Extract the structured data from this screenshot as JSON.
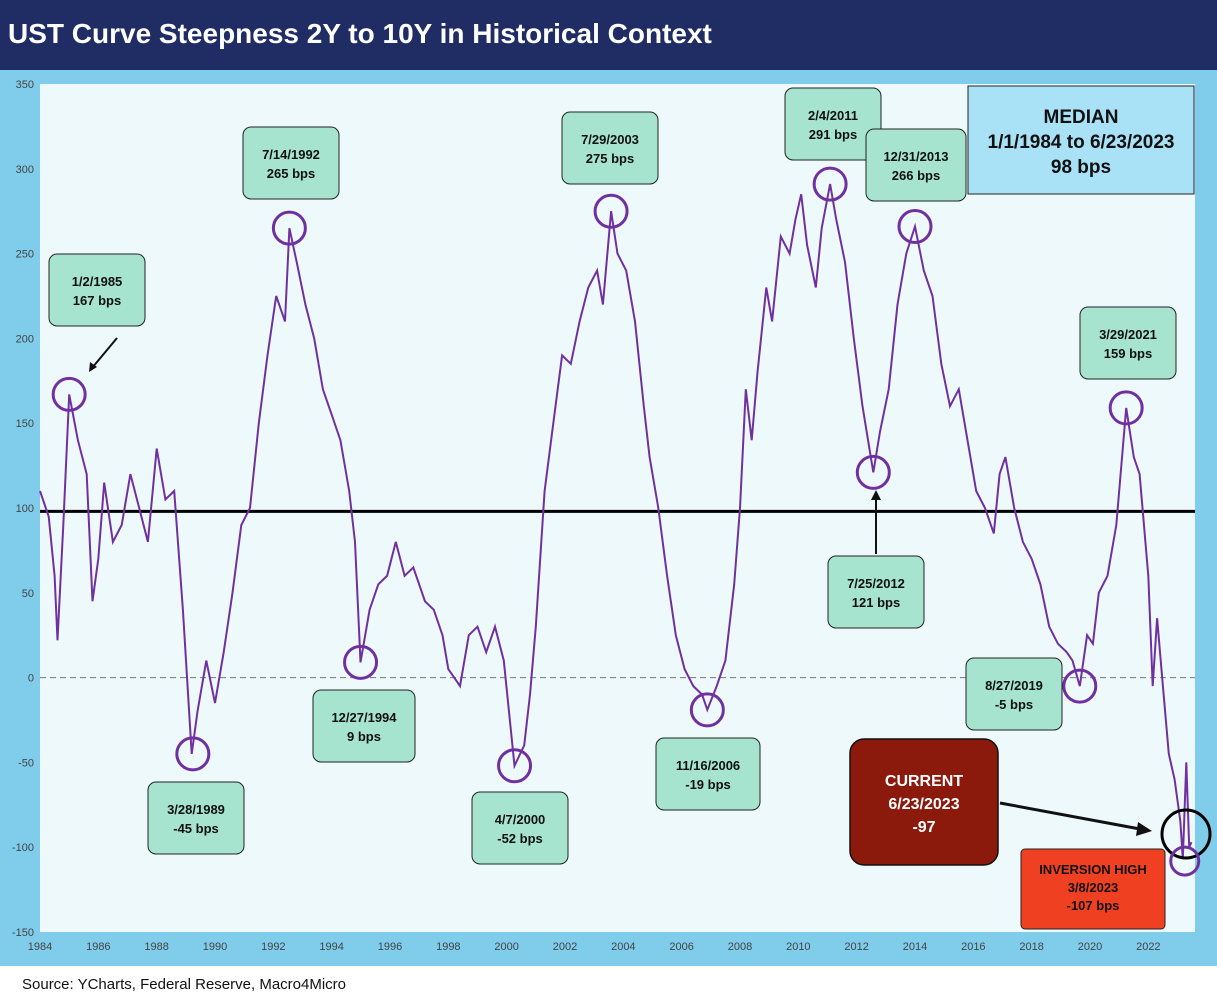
{
  "header": {
    "title": "UST Curve Steepness 2Y to 10Y in Historical Context"
  },
  "footer": {
    "source": "Source: YCharts, Federal Reserve, Macro4Micro"
  },
  "colors": {
    "title_bg": "#1f2d64",
    "plot_bg": "#eef9fc",
    "line": "#7030a0",
    "callout": "#a6e4d0",
    "median_box": "#a9e1f7",
    "current_box": "#8b1a0c",
    "inversion_box": "#f04022"
  },
  "chart_data": {
    "type": "line",
    "title": "UST Curve Steepness 2Y to 10Y in Historical Context",
    "xlabel": "",
    "ylabel": "",
    "xlim": [
      1984,
      2023.6
    ],
    "ylim": [
      -150,
      350
    ],
    "x_ticks": [
      "1984",
      "1986",
      "1988",
      "1990",
      "1992",
      "1994",
      "1996",
      "1998",
      "2000",
      "2002",
      "2004",
      "2006",
      "2008",
      "2010",
      "2012",
      "2014",
      "2016",
      "2018",
      "2020",
      "2022"
    ],
    "y_ticks": [
      "350",
      "300",
      "250",
      "200",
      "150",
      "100",
      "50",
      "0",
      "-50",
      "-100",
      "-150"
    ],
    "median_line": 98,
    "zero_line": 0,
    "grid": false,
    "series": [
      {
        "points": [
          [
            1984.0,
            110
          ],
          [
            1984.3,
            95
          ],
          [
            1984.5,
            60
          ],
          [
            1984.6,
            22
          ],
          [
            1984.8,
            90
          ],
          [
            1985.0,
            167
          ],
          [
            1985.3,
            140
          ],
          [
            1985.6,
            120
          ],
          [
            1985.8,
            45
          ],
          [
            1986.0,
            70
          ],
          [
            1986.2,
            115
          ],
          [
            1986.5,
            80
          ],
          [
            1986.8,
            90
          ],
          [
            1987.1,
            120
          ],
          [
            1987.4,
            100
          ],
          [
            1987.7,
            80
          ],
          [
            1988.0,
            135
          ],
          [
            1988.3,
            105
          ],
          [
            1988.6,
            110
          ],
          [
            1988.9,
            40
          ],
          [
            1989.2,
            -45
          ],
          [
            1989.4,
            -20
          ],
          [
            1989.7,
            10
          ],
          [
            1990.0,
            -15
          ],
          [
            1990.3,
            15
          ],
          [
            1990.6,
            50
          ],
          [
            1990.9,
            90
          ],
          [
            1991.2,
            100
          ],
          [
            1991.5,
            150
          ],
          [
            1991.8,
            190
          ],
          [
            1992.1,
            225
          ],
          [
            1992.4,
            210
          ],
          [
            1992.55,
            265
          ],
          [
            1992.8,
            245
          ],
          [
            1993.1,
            220
          ],
          [
            1993.4,
            200
          ],
          [
            1993.7,
            170
          ],
          [
            1994.0,
            155
          ],
          [
            1994.3,
            140
          ],
          [
            1994.6,
            110
          ],
          [
            1994.8,
            80
          ],
          [
            1994.99,
            9
          ],
          [
            1995.3,
            40
          ],
          [
            1995.6,
            55
          ],
          [
            1995.9,
            60
          ],
          [
            1996.2,
            80
          ],
          [
            1996.5,
            60
          ],
          [
            1996.8,
            65
          ],
          [
            1997.2,
            45
          ],
          [
            1997.5,
            40
          ],
          [
            1997.8,
            25
          ],
          [
            1998.0,
            5
          ],
          [
            1998.2,
            0
          ],
          [
            1998.4,
            -5
          ],
          [
            1998.7,
            25
          ],
          [
            1999.0,
            30
          ],
          [
            1999.3,
            15
          ],
          [
            1999.6,
            30
          ],
          [
            1999.9,
            10
          ],
          [
            2000.27,
            -52
          ],
          [
            2000.6,
            -40
          ],
          [
            2000.8,
            -10
          ],
          [
            2001.0,
            30
          ],
          [
            2001.3,
            110
          ],
          [
            2001.6,
            150
          ],
          [
            2001.9,
            190
          ],
          [
            2002.2,
            185
          ],
          [
            2002.5,
            210
          ],
          [
            2002.8,
            230
          ],
          [
            2003.1,
            240
          ],
          [
            2003.3,
            220
          ],
          [
            2003.58,
            275
          ],
          [
            2003.8,
            250
          ],
          [
            2004.1,
            240
          ],
          [
            2004.4,
            210
          ],
          [
            2004.7,
            160
          ],
          [
            2004.9,
            130
          ],
          [
            2005.2,
            100
          ],
          [
            2005.5,
            60
          ],
          [
            2005.8,
            25
          ],
          [
            2006.1,
            5
          ],
          [
            2006.4,
            -5
          ],
          [
            2006.7,
            -10
          ],
          [
            2006.88,
            -19
          ],
          [
            2007.2,
            -5
          ],
          [
            2007.5,
            10
          ],
          [
            2007.8,
            55
          ],
          [
            2008.0,
            100
          ],
          [
            2008.2,
            170
          ],
          [
            2008.4,
            140
          ],
          [
            2008.6,
            180
          ],
          [
            2008.9,
            230
          ],
          [
            2009.1,
            210
          ],
          [
            2009.4,
            260
          ],
          [
            2009.7,
            250
          ],
          [
            2009.9,
            270
          ],
          [
            2010.1,
            285
          ],
          [
            2010.3,
            255
          ],
          [
            2010.6,
            230
          ],
          [
            2010.8,
            265
          ],
          [
            2011.09,
            291
          ],
          [
            2011.3,
            270
          ],
          [
            2011.6,
            245
          ],
          [
            2011.9,
            200
          ],
          [
            2012.2,
            160
          ],
          [
            2012.57,
            121
          ],
          [
            2012.8,
            145
          ],
          [
            2013.1,
            170
          ],
          [
            2013.4,
            220
          ],
          [
            2013.7,
            250
          ],
          [
            2014.0,
            266
          ],
          [
            2014.3,
            240
          ],
          [
            2014.6,
            225
          ],
          [
            2014.9,
            185
          ],
          [
            2015.2,
            160
          ],
          [
            2015.5,
            170
          ],
          [
            2015.8,
            140
          ],
          [
            2016.1,
            110
          ],
          [
            2016.4,
            100
          ],
          [
            2016.7,
            85
          ],
          [
            2016.9,
            120
          ],
          [
            2017.1,
            130
          ],
          [
            2017.4,
            100
          ],
          [
            2017.7,
            80
          ],
          [
            2018.0,
            70
          ],
          [
            2018.3,
            55
          ],
          [
            2018.6,
            30
          ],
          [
            2018.9,
            20
          ],
          [
            2019.2,
            15
          ],
          [
            2019.4,
            10
          ],
          [
            2019.65,
            -5
          ],
          [
            2019.9,
            25
          ],
          [
            2020.1,
            20
          ],
          [
            2020.3,
            50
          ],
          [
            2020.6,
            60
          ],
          [
            2020.9,
            90
          ],
          [
            2021.24,
            159
          ],
          [
            2021.5,
            130
          ],
          [
            2021.7,
            120
          ],
          [
            2021.9,
            80
          ],
          [
            2022.0,
            60
          ],
          [
            2022.15,
            -5
          ],
          [
            2022.3,
            35
          ],
          [
            2022.5,
            -5
          ],
          [
            2022.7,
            -45
          ],
          [
            2022.9,
            -60
          ],
          [
            2023.1,
            -85
          ],
          [
            2023.18,
            -107
          ],
          [
            2023.3,
            -50
          ],
          [
            2023.4,
            -100
          ],
          [
            2023.48,
            -97
          ]
        ]
      }
    ],
    "annotations": [
      {
        "date": "1/2/1985",
        "value": "167 bps",
        "x": 1985.0,
        "y": 167
      },
      {
        "date": "7/14/1992",
        "value": "265 bps",
        "x": 1992.55,
        "y": 265
      },
      {
        "date": "3/28/1989",
        "value": "-45 bps",
        "x": 1989.24,
        "y": -45
      },
      {
        "date": "12/27/1994",
        "value": "9 bps",
        "x": 1994.99,
        "y": 9
      },
      {
        "date": "4/7/2000",
        "value": "-52 bps",
        "x": 2000.27,
        "y": -52
      },
      {
        "date": "7/29/2003",
        "value": "275 bps",
        "x": 2003.58,
        "y": 275
      },
      {
        "date": "11/16/2006",
        "value": "-19 bps",
        "x": 2006.88,
        "y": -19
      },
      {
        "date": "2/4/2011",
        "value": "291 bps",
        "x": 2011.09,
        "y": 291
      },
      {
        "date": "12/31/2013",
        "value": "266 bps",
        "x": 2014.0,
        "y": 266
      },
      {
        "date": "7/25/2012",
        "value": "121 bps",
        "x": 2012.57,
        "y": 121
      },
      {
        "date": "3/29/2021",
        "value": "159 bps",
        "x": 2021.24,
        "y": 159
      },
      {
        "date": "8/27/2019",
        "value": "-5 bps",
        "x": 2019.65,
        "y": -5
      }
    ],
    "median_box": {
      "line1": "MEDIAN",
      "line2": "1/1/1984 to 6/23/2023",
      "line3": "98 bps"
    },
    "current_box": {
      "line1": "CURRENT",
      "line2": "6/23/2023",
      "line3": "-97",
      "x": 2023.48,
      "y": -97
    },
    "inversion_box": {
      "line1": "INVERSION HIGH",
      "line2": "3/8/2023",
      "line3": "-107 bps",
      "x": 2023.18,
      "y": -107
    }
  }
}
